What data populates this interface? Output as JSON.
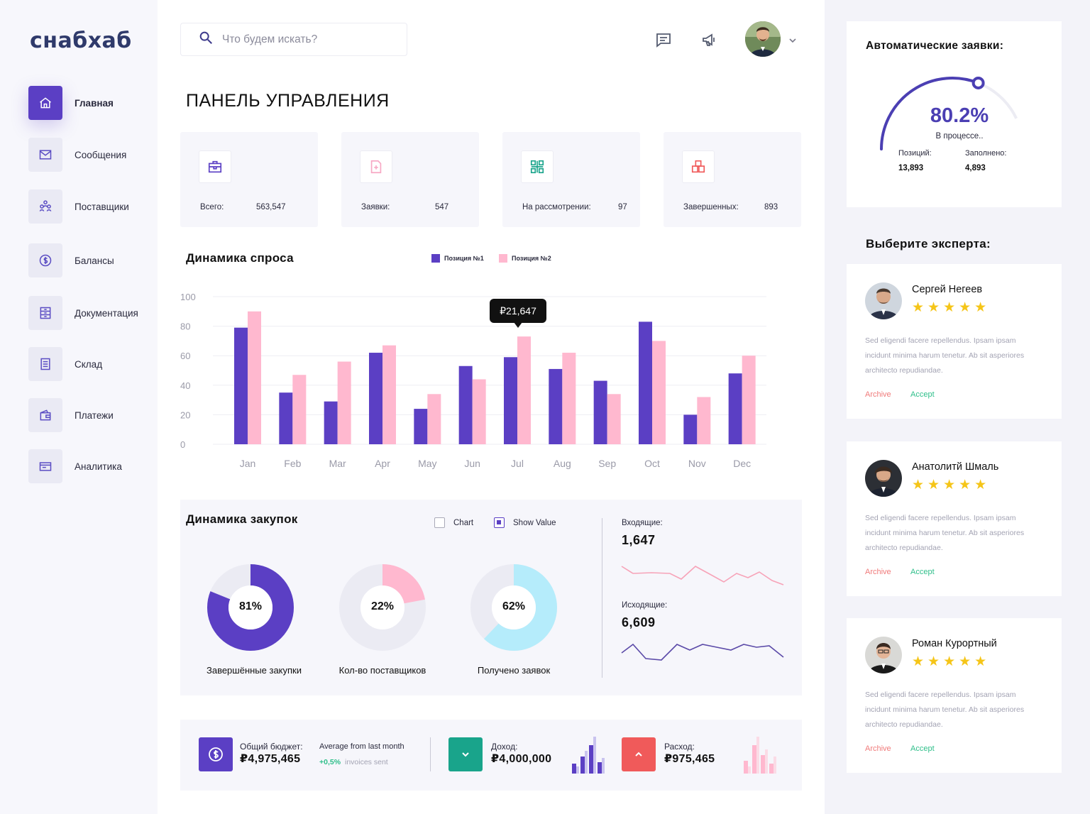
{
  "sidebar": {
    "logo": "снабхаб",
    "items": [
      {
        "label": "Главная",
        "icon": "home-icon",
        "active": true
      },
      {
        "label": "Сообщения",
        "icon": "mail-icon"
      },
      {
        "label": "Поставщики",
        "icon": "suppliers-icon"
      },
      {
        "label": "Балансы",
        "icon": "coin-icon"
      },
      {
        "label": "Документация",
        "icon": "document-icon"
      },
      {
        "label": "Склад",
        "icon": "warehouse-icon"
      },
      {
        "label": "Платежи",
        "icon": "payments-icon"
      },
      {
        "label": "Аналитика",
        "icon": "analytics-icon"
      }
    ]
  },
  "header": {
    "search_placeholder": "Что будем искать?",
    "page_title": "ПАНЕЛЬ УПРАВЛЕНИЯ"
  },
  "stats": [
    {
      "label": "Всего:",
      "value": "563,547",
      "icon": "briefcase-icon",
      "color": "#5b3fc4"
    },
    {
      "label": "Заявки:",
      "value": "547",
      "icon": "file-plus-icon",
      "color": "#f7a8c4"
    },
    {
      "label": "На рассмотрении:",
      "value": "97",
      "icon": "grid-icon",
      "color": "#19a48b"
    },
    {
      "label": "Завершенных:",
      "value": "893",
      "icon": "boxes-icon",
      "color": "#f05a5a"
    }
  ],
  "demand": {
    "title": "Динамика спроса",
    "tooltip": "₽21,647"
  },
  "chart_data": {
    "type": "bar",
    "categories": [
      "Jan",
      "Feb",
      "Mar",
      "Apr",
      "May",
      "Jun",
      "Jul",
      "Aug",
      "Sep",
      "Oct",
      "Nov",
      "Dec"
    ],
    "series": [
      {
        "name": "Позиция №1",
        "color": "#5b3fc4",
        "values": [
          79,
          35,
          29,
          62,
          24,
          53,
          59,
          51,
          43,
          83,
          20,
          48
        ]
      },
      {
        "name": "Позиция №2",
        "color": "#ffb8cf",
        "values": [
          90,
          47,
          56,
          67,
          34,
          44,
          73,
          62,
          34,
          70,
          32,
          60
        ]
      }
    ],
    "yticks": [
      0,
      20,
      40,
      60,
      80,
      100
    ],
    "ylim": [
      0,
      100
    ],
    "grid": true,
    "legend": "top"
  },
  "purchases": {
    "title": "Динамика закупок",
    "checkbox_chart": "Chart",
    "checkbox_show_value": "Show Value",
    "donuts": [
      {
        "pct": "81%",
        "value": 81,
        "label": "Завершённые закупки",
        "color": "#5b3fc4"
      },
      {
        "pct": "22%",
        "value": 22,
        "label": "Кол-во поставщиков",
        "color": "#ffb8cf"
      },
      {
        "pct": "62%",
        "value": 62,
        "label": "Получено заявок",
        "color": "#b5ecfb"
      }
    ],
    "incoming_label": "Входящие:",
    "incoming_value": "1,647",
    "incoming_color": "#f7a3b8",
    "outgoing_label": "Исходящие:",
    "outgoing_value": "6,609",
    "outgoing_color": "#5b4aa8"
  },
  "budget": {
    "total_label": "Общий бюджет:",
    "total_value": "₽4,975,465",
    "avg_label": "Average from last month",
    "avg_change": "+0,5%",
    "avg_suffix": "invoices sent",
    "income_label": "Доход:",
    "income_value": "₽4,000,000",
    "expense_label": "Расход:",
    "expense_value": "₽975,465"
  },
  "auto": {
    "title": "Автоматические заявки:",
    "pct": "80.2%",
    "value": 80.2,
    "status": "В процессе..",
    "positions_label": "Позиций:",
    "positions_value": "13,893",
    "filled_label": "Заполнено:",
    "filled_value": "4,893"
  },
  "experts": {
    "title": "Выберите эксперта:",
    "list": [
      {
        "name": "Сергей Негеев",
        "text": "Sed eligendi facere repellendus. Ipsam ipsam incidunt minima harum tenetur. Ab sit asperiores architecto repudiandae.",
        "archive": "Archive",
        "accept": "Accept"
      },
      {
        "name": "Анатолитй Шмаль",
        "text": "Sed eligendi facere repellendus. Ipsam ipsam incidunt minima harum tenetur. Ab sit asperiores architecto repudiandae.",
        "archive": "Archive",
        "accept": "Accept"
      },
      {
        "name": "Роман Курортный",
        "text": "Sed eligendi facere repellendus. Ipsam ipsam incidunt minima harum tenetur. Ab sit asperiores architecto repudiandae.",
        "archive": "Archive",
        "accept": "Accept"
      }
    ]
  }
}
